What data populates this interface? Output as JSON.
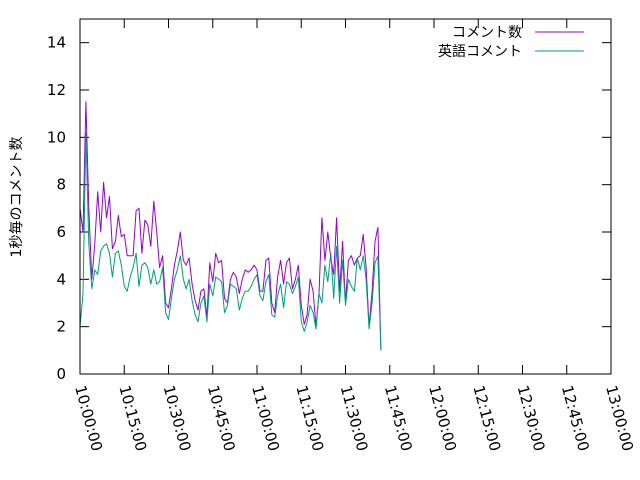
{
  "chart_data": {
    "type": "line",
    "title": "",
    "xlabel": "",
    "ylabel": "1秒毎のコメント数",
    "ylim": [
      0,
      15
    ],
    "xlim": [
      "10:00:00",
      "13:00:00"
    ],
    "y_ticks": [
      "0",
      "2",
      "4",
      "6",
      "8",
      "10",
      "12",
      "14"
    ],
    "x_ticks": [
      "10:00:00",
      "10:15:00",
      "10:30:00",
      "10:45:00",
      "11:00:00",
      "11:15:00",
      "11:30:00",
      "11:45:00",
      "12:00:00",
      "12:15:00",
      "12:30:00",
      "12:45:00",
      "13:00:00"
    ],
    "grid": false,
    "legend_position": "top-right",
    "x": [
      "10:00:00",
      "10:01:00",
      "10:02:00",
      "10:03:00",
      "10:04:00",
      "10:05:00",
      "10:06:00",
      "10:07:00",
      "10:08:00",
      "10:09:00",
      "10:10:00",
      "10:11:00",
      "10:12:00",
      "10:13:00",
      "10:14:00",
      "10:15:00",
      "10:16:00",
      "10:17:00",
      "10:18:00",
      "10:19:00",
      "10:20:00",
      "10:21:00",
      "10:22:00",
      "10:23:00",
      "10:24:00",
      "10:25:00",
      "10:26:00",
      "10:27:00",
      "10:28:00",
      "10:29:00",
      "10:30:00",
      "10:31:00",
      "10:32:00",
      "10:33:00",
      "10:34:00",
      "10:35:00",
      "10:36:00",
      "10:37:00",
      "10:38:00",
      "10:39:00",
      "10:40:00",
      "10:41:00",
      "10:42:00",
      "10:43:00",
      "10:44:00",
      "10:45:00",
      "10:46:00",
      "10:47:00",
      "10:48:00",
      "10:49:00",
      "10:50:00",
      "10:51:00",
      "10:52:00",
      "10:53:00",
      "10:54:00",
      "10:55:00",
      "10:56:00",
      "10:57:00",
      "10:58:00",
      "10:59:00",
      "11:00:00",
      "11:01:00",
      "11:02:00",
      "11:03:00",
      "11:04:00",
      "11:05:00",
      "11:06:00",
      "11:07:00",
      "11:08:00",
      "11:09:00",
      "11:10:00",
      "11:11:00",
      "11:12:00",
      "11:13:00",
      "11:14:00",
      "11:15:00",
      "11:16:00",
      "11:17:00",
      "11:18:00",
      "11:19:00",
      "11:20:00",
      "11:21:00",
      "11:22:00",
      "11:23:00",
      "11:24:00",
      "11:25:00",
      "11:26:00",
      "11:27:00",
      "11:28:00",
      "11:29:00",
      "11:30:00",
      "11:31:00",
      "11:32:00",
      "11:33:00",
      "11:34:00",
      "11:35:00",
      "11:36:00",
      "11:37:00",
      "11:38:00",
      "11:39:00",
      "11:40:00",
      "11:41:00",
      "11:42:00",
      "11:43:00",
      "11:44:00",
      "11:45:00",
      "11:46:00",
      "11:47:00",
      "11:48:00",
      "11:49:00",
      "11:50:00",
      "11:51:00",
      "11:52:00",
      "11:53:00",
      "11:54:00",
      "11:55:00",
      "11:56:00",
      "11:57:00",
      "11:58:00",
      "11:59:00",
      "12:00:00",
      "12:01:00",
      "12:02:00",
      "12:03:00",
      "12:04:00",
      "12:05:00",
      "12:06:00",
      "12:07:00",
      "12:08:00",
      "12:09:00",
      "12:10:00",
      "12:11:00",
      "12:12:00",
      "12:13:00",
      "12:14:00",
      "12:15:00",
      "12:16:00",
      "12:17:00",
      "12:18:00",
      "12:19:00",
      "12:20:00",
      "12:21:00",
      "12:22:00",
      "12:23:00",
      "12:24:00",
      "12:25:00",
      "12:26:00",
      "12:27:00",
      "12:28:00",
      "12:29:00",
      "12:30:00",
      "12:31:00",
      "12:32:00",
      "12:33:00",
      "12:34:00",
      "12:35:00",
      "12:36:00",
      "12:37:00",
      "12:38:00",
      "12:39:00",
      "12:40:00",
      "12:41:00",
      "12:42:00",
      "12:43:00",
      "12:44:00",
      "12:45:00",
      "12:46:00",
      "12:47:00",
      "12:48:00",
      "12:49:00",
      "12:50:00",
      "12:51:00",
      "12:52:00",
      "12:53:00",
      "12:54:00",
      "12:55:00",
      "12:56:00",
      "12:57:00",
      "12:58:00",
      "12:59:00",
      "13:00:00"
    ],
    "series": [
      {
        "name": "コメント数",
        "color": "#9400d3",
        "points": [
          [
            "10:00:00",
            7.0
          ],
          [
            "10:01:00",
            6.0
          ],
          [
            "10:02:00",
            11.5
          ],
          [
            "10:03:00",
            7.0
          ],
          [
            "10:04:00",
            4.0
          ],
          [
            "10:05:00",
            5.5
          ],
          [
            "10:06:00",
            7.7
          ],
          [
            "10:07:00",
            6.0
          ],
          [
            "10:08:00",
            8.1
          ],
          [
            "10:09:00",
            6.6
          ],
          [
            "10:10:00",
            7.5
          ],
          [
            "10:11:00",
            5.3
          ],
          [
            "10:12:00",
            5.6
          ],
          [
            "10:13:00",
            6.7
          ],
          [
            "10:14:00",
            5.8
          ],
          [
            "10:15:00",
            5.9
          ],
          [
            "10:16:00",
            5.0
          ],
          [
            "10:17:00",
            5.0
          ],
          [
            "10:18:00",
            5.0
          ],
          [
            "10:19:00",
            6.9
          ],
          [
            "10:20:00",
            7.0
          ],
          [
            "10:21:00",
            5.1
          ],
          [
            "10:22:00",
            6.5
          ],
          [
            "10:23:00",
            6.3
          ],
          [
            "10:24:00",
            5.4
          ],
          [
            "10:25:00",
            7.3
          ],
          [
            "10:26:00",
            6.0
          ],
          [
            "10:27:00",
            4.5
          ],
          [
            "10:28:00",
            5.0
          ],
          [
            "10:29:00",
            3.0
          ],
          [
            "10:30:00",
            2.8
          ],
          [
            "10:31:00",
            3.6
          ],
          [
            "10:32:00",
            4.6
          ],
          [
            "10:33:00",
            5.2
          ],
          [
            "10:34:00",
            6.0
          ],
          [
            "10:35:00",
            4.8
          ],
          [
            "10:36:00",
            4.6
          ],
          [
            "10:37:00",
            4.9
          ],
          [
            "10:38:00",
            3.8
          ],
          [
            "10:39:00",
            3.1
          ],
          [
            "10:40:00",
            2.7
          ],
          [
            "10:41:00",
            3.5
          ],
          [
            "10:42:00",
            3.6
          ],
          [
            "10:43:00",
            2.4
          ],
          [
            "10:44:00",
            4.7
          ],
          [
            "10:45:00",
            3.9
          ],
          [
            "10:46:00",
            5.1
          ],
          [
            "10:47:00",
            4.7
          ],
          [
            "10:48:00",
            4.8
          ],
          [
            "10:49:00",
            3.2
          ],
          [
            "10:50:00",
            3.0
          ],
          [
            "10:51:00",
            4.0
          ],
          [
            "10:52:00",
            4.3
          ],
          [
            "10:53:00",
            4.1
          ],
          [
            "10:54:00",
            3.4
          ],
          [
            "10:55:00",
            4.0
          ],
          [
            "10:56:00",
            4.4
          ],
          [
            "10:57:00",
            4.3
          ],
          [
            "10:58:00",
            4.4
          ],
          [
            "10:59:00",
            4.6
          ],
          [
            "11:00:00",
            4.4
          ],
          [
            "11:01:00",
            3.5
          ],
          [
            "11:02:00",
            3.5
          ],
          [
            "11:03:00",
            4.8
          ],
          [
            "11:04:00",
            4.9
          ],
          [
            "11:05:00",
            3.0
          ],
          [
            "11:06:00",
            2.6
          ],
          [
            "11:07:00",
            4.1
          ],
          [
            "11:08:00",
            4.8
          ],
          [
            "11:09:00",
            3.8
          ],
          [
            "11:10:00",
            4.7
          ],
          [
            "11:11:00",
            4.9
          ],
          [
            "11:12:00",
            3.6
          ],
          [
            "11:13:00",
            4.0
          ],
          [
            "11:14:00",
            4.6
          ],
          [
            "11:15:00",
            2.9
          ],
          [
            "11:16:00",
            2.1
          ],
          [
            "11:17:00",
            2.5
          ],
          [
            "11:18:00",
            4.0
          ],
          [
            "11:19:00",
            3.5
          ],
          [
            "11:20:00",
            2.0
          ],
          [
            "11:21:00",
            3.4
          ],
          [
            "11:22:00",
            6.6
          ],
          [
            "11:23:00",
            4.8
          ],
          [
            "11:24:00",
            6.0
          ],
          [
            "11:25:00",
            4.9
          ],
          [
            "11:26:00",
            4.2
          ],
          [
            "11:27:00",
            6.6
          ],
          [
            "11:28:00",
            3.5
          ],
          [
            "11:29:00",
            5.6
          ],
          [
            "11:30:00",
            3.0
          ],
          [
            "11:31:00",
            4.8
          ],
          [
            "11:32:00",
            5.0
          ],
          [
            "11:33:00",
            4.6
          ],
          [
            "11:34:00",
            4.9
          ],
          [
            "11:35:00",
            5.0
          ],
          [
            "11:36:00",
            5.9
          ],
          [
            "11:37:00",
            4.5
          ],
          [
            "11:38:00",
            2.0
          ],
          [
            "11:39:00",
            3.5
          ],
          [
            "11:40:00",
            5.6
          ],
          [
            "11:41:00",
            6.2
          ],
          [
            "11:42:00",
            1.0
          ]
        ]
      },
      {
        "name": "英語コメント",
        "color": "#009e73",
        "points": [
          [
            "10:00:00",
            2.0
          ],
          [
            "10:01:00",
            3.4
          ],
          [
            "10:02:00",
            10.2
          ],
          [
            "10:03:00",
            5.5
          ],
          [
            "10:04:00",
            3.6
          ],
          [
            "10:05:00",
            4.4
          ],
          [
            "10:06:00",
            4.2
          ],
          [
            "10:07:00",
            5.2
          ],
          [
            "10:08:00",
            5.4
          ],
          [
            "10:09:00",
            5.5
          ],
          [
            "10:10:00",
            5.1
          ],
          [
            "10:11:00",
            4.1
          ],
          [
            "10:12:00",
            5.1
          ],
          [
            "10:13:00",
            5.2
          ],
          [
            "10:14:00",
            4.6
          ],
          [
            "10:15:00",
            3.7
          ],
          [
            "10:16:00",
            3.5
          ],
          [
            "10:17:00",
            4.1
          ],
          [
            "10:18:00",
            4.5
          ],
          [
            "10:19:00",
            5.1
          ],
          [
            "10:20:00",
            3.7
          ],
          [
            "10:21:00",
            4.6
          ],
          [
            "10:22:00",
            4.7
          ],
          [
            "10:23:00",
            4.5
          ],
          [
            "10:24:00",
            3.8
          ],
          [
            "10:25:00",
            4.4
          ],
          [
            "10:26:00",
            3.8
          ],
          [
            "10:27:00",
            3.9
          ],
          [
            "10:28:00",
            4.5
          ],
          [
            "10:29:00",
            2.6
          ],
          [
            "10:30:00",
            2.3
          ],
          [
            "10:31:00",
            3.2
          ],
          [
            "10:32:00",
            4.0
          ],
          [
            "10:33:00",
            4.4
          ],
          [
            "10:34:00",
            5.0
          ],
          [
            "10:35:00",
            4.0
          ],
          [
            "10:36:00",
            3.6
          ],
          [
            "10:37:00",
            4.0
          ],
          [
            "10:38:00",
            3.1
          ],
          [
            "10:39:00",
            2.5
          ],
          [
            "10:40:00",
            2.2
          ],
          [
            "10:41:00",
            3.0
          ],
          [
            "10:42:00",
            3.3
          ],
          [
            "10:43:00",
            2.2
          ],
          [
            "10:44:00",
            3.8
          ],
          [
            "10:45:00",
            3.3
          ],
          [
            "10:46:00",
            4.1
          ],
          [
            "10:47:00",
            4.0
          ],
          [
            "10:48:00",
            3.9
          ],
          [
            "10:49:00",
            2.6
          ],
          [
            "10:50:00",
            2.9
          ],
          [
            "10:51:00",
            3.8
          ],
          [
            "10:52:00",
            3.7
          ],
          [
            "10:53:00",
            3.6
          ],
          [
            "10:54:00",
            2.7
          ],
          [
            "10:55:00",
            3.2
          ],
          [
            "10:56:00",
            3.5
          ],
          [
            "10:57:00",
            3.5
          ],
          [
            "10:58:00",
            3.7
          ],
          [
            "10:59:00",
            4.0
          ],
          [
            "11:00:00",
            4.2
          ],
          [
            "11:01:00",
            3.3
          ],
          [
            "11:02:00",
            3.1
          ],
          [
            "11:03:00",
            3.9
          ],
          [
            "11:04:00",
            4.2
          ],
          [
            "11:05:00",
            2.5
          ],
          [
            "11:06:00",
            2.4
          ],
          [
            "11:07:00",
            3.3
          ],
          [
            "11:08:00",
            3.8
          ],
          [
            "11:09:00",
            2.8
          ],
          [
            "11:10:00",
            3.9
          ],
          [
            "11:11:00",
            3.8
          ],
          [
            "11:12:00",
            3.4
          ],
          [
            "11:13:00",
            3.7
          ],
          [
            "11:14:00",
            4.1
          ],
          [
            "11:15:00",
            2.2
          ],
          [
            "11:16:00",
            1.8
          ],
          [
            "11:17:00",
            2.2
          ],
          [
            "11:18:00",
            2.9
          ],
          [
            "11:19:00",
            2.6
          ],
          [
            "11:20:00",
            1.9
          ],
          [
            "11:21:00",
            3.4
          ],
          [
            "11:22:00",
            3.0
          ],
          [
            "11:23:00",
            4.6
          ],
          [
            "11:24:00",
            3.9
          ],
          [
            "11:25:00",
            5.1
          ],
          [
            "11:26:00",
            3.2
          ],
          [
            "11:27:00",
            5.4
          ],
          [
            "11:28:00",
            3.0
          ],
          [
            "11:29:00",
            4.8
          ],
          [
            "11:30:00",
            2.9
          ],
          [
            "11:31:00",
            4.0
          ],
          [
            "11:32:00",
            3.7
          ],
          [
            "11:33:00",
            3.5
          ],
          [
            "11:34:00",
            4.9
          ],
          [
            "11:35:00",
            4.4
          ],
          [
            "11:36:00",
            5.0
          ],
          [
            "11:37:00",
            4.0
          ],
          [
            "11:38:00",
            1.9
          ],
          [
            "11:39:00",
            3.0
          ],
          [
            "11:40:00",
            4.7
          ],
          [
            "11:41:00",
            5.0
          ],
          [
            "11:42:00",
            1.0
          ]
        ]
      }
    ]
  }
}
